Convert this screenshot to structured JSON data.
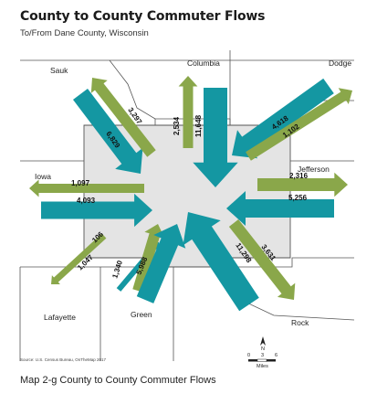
{
  "header": {
    "title": "County to County Commuter Flows",
    "subtitle": "To/From Dane County, Wisconsin"
  },
  "caption": "Map 2-g County to County Commuter Flows",
  "source": "Source: U.S. Census Bureau, OnTheMap 2017",
  "colors": {
    "inbound": "#1497a2",
    "outbound": "#8aa74a",
    "dane_fill": "#e4e4e4",
    "borders": "#555555"
  },
  "counties": {
    "center": "Dane",
    "sauk": "Sauk",
    "columbia": "Columbia",
    "dodge": "Dodge",
    "iowa": "Iowa",
    "jefferson": "Jefferson",
    "lafayette": "Lafayette",
    "green": "Green",
    "rock": "Rock"
  },
  "flows": {
    "sauk_in": "6,829",
    "sauk_out": "3,297",
    "columbia_out": "2,534",
    "columbia_in": "11,648",
    "dodge_in": "4,618",
    "dodge_out": "1,102",
    "iowa_out": "1,097",
    "iowa_in": "4,093",
    "jefferson_out": "2,316",
    "jefferson_in": "5,256",
    "lafayette_out": "1,047",
    "lafayette_in": "106",
    "green_out": "1,340",
    "green_in": "5,988",
    "rock_in": "11,298",
    "rock_out": "3,631"
  },
  "scale": {
    "ticks": [
      "0",
      "3",
      "6"
    ],
    "unit": "Miles",
    "north": "N"
  }
}
